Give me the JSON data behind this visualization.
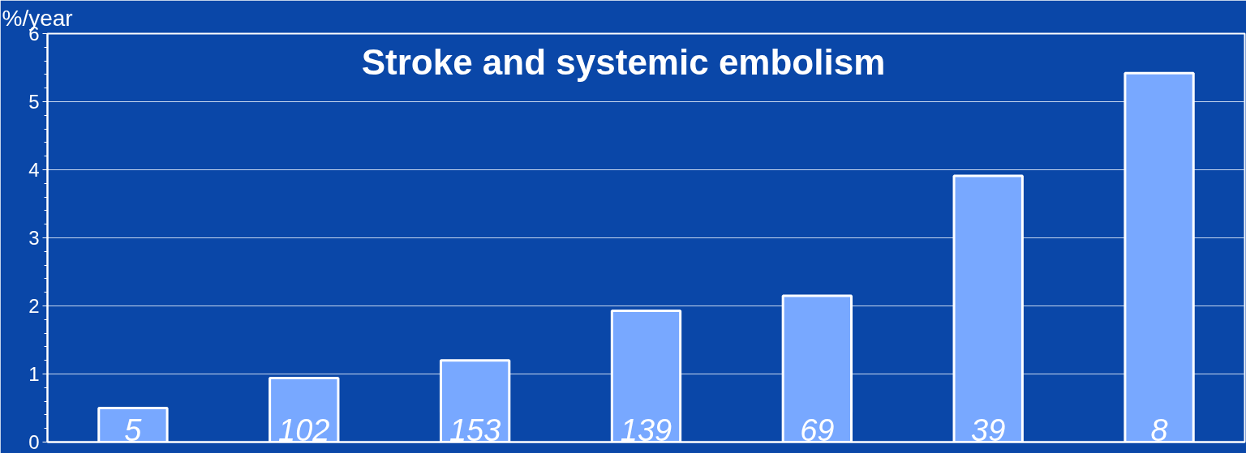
{
  "chart_data": {
    "type": "bar",
    "title": "Stroke and systemic embolism",
    "ylabel": "%/year",
    "categories": [
      null,
      null,
      null,
      null,
      null,
      null,
      null
    ],
    "values": [
      0.5,
      0.94,
      1.2,
      1.93,
      2.15,
      3.91,
      5.42
    ],
    "annotations": [
      "5",
      "102",
      "153",
      "139",
      "69",
      "39",
      "8"
    ],
    "color": "#78a8ff",
    "ylim": [
      0,
      6
    ],
    "yticks": [
      0,
      1,
      2,
      3,
      4,
      5,
      6
    ],
    "grid": "y"
  }
}
